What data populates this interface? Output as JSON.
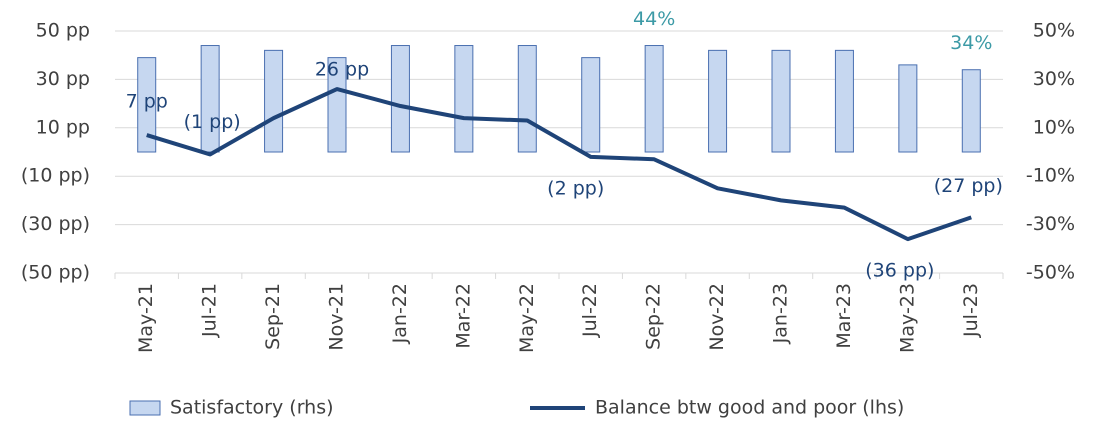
{
  "chart_data": {
    "type": "bar_line",
    "categories": [
      "May-21",
      "Jul-21",
      "Sep-21",
      "Nov-21",
      "Jan-22",
      "Mar-22",
      "May-22",
      "Jul-22",
      "Sep-22",
      "Nov-22",
      "Jan-23",
      "Mar-23",
      "May-23",
      "Jul-23"
    ],
    "ylim": [
      -50,
      50
    ],
    "yticks": [
      {
        "value": 50,
        "label": "50 pp"
      },
      {
        "value": 30,
        "label": "30 pp"
      },
      {
        "value": 10,
        "label": "10 pp"
      },
      {
        "value": -10,
        "label": "(10 pp)"
      },
      {
        "value": -30,
        "label": "(30 pp)"
      },
      {
        "value": -50,
        "label": "(50 pp)"
      }
    ],
    "y2lim": [
      -50,
      50
    ],
    "y2ticks": [
      {
        "value": 50,
        "label": "50%"
      },
      {
        "value": 30,
        "label": "30%"
      },
      {
        "value": 10,
        "label": "10%"
      },
      {
        "value": -10,
        "label": "-10%"
      },
      {
        "value": -30,
        "label": "-30%"
      },
      {
        "value": -50,
        "label": "-50%"
      }
    ],
    "grid": true,
    "series": [
      {
        "name": "Satisfactory (rhs)",
        "type": "bar",
        "axis": "y2",
        "color": "#c6d7f0",
        "edge": "#4a6fb0",
        "values": [
          39,
          44,
          42,
          39,
          44,
          44,
          44,
          39,
          44,
          42,
          42,
          42,
          36,
          34
        ],
        "value_labels": [
          null,
          null,
          null,
          null,
          null,
          null,
          null,
          null,
          "44%",
          null,
          null,
          null,
          null,
          "34%"
        ]
      },
      {
        "name": "Balance btw good and poor (lhs)",
        "type": "line",
        "axis": "y",
        "color": "#1f4478",
        "values": [
          7,
          -1,
          14,
          26,
          19,
          14,
          13,
          -2,
          -3,
          -15,
          -20,
          -23,
          -36,
          -27
        ],
        "value_labels": [
          "7 pp",
          "(1 pp)",
          null,
          "26 pp",
          null,
          null,
          null,
          "(2 pp)",
          null,
          null,
          null,
          null,
          "(36 pp)",
          "(27 pp)"
        ]
      }
    ]
  }
}
